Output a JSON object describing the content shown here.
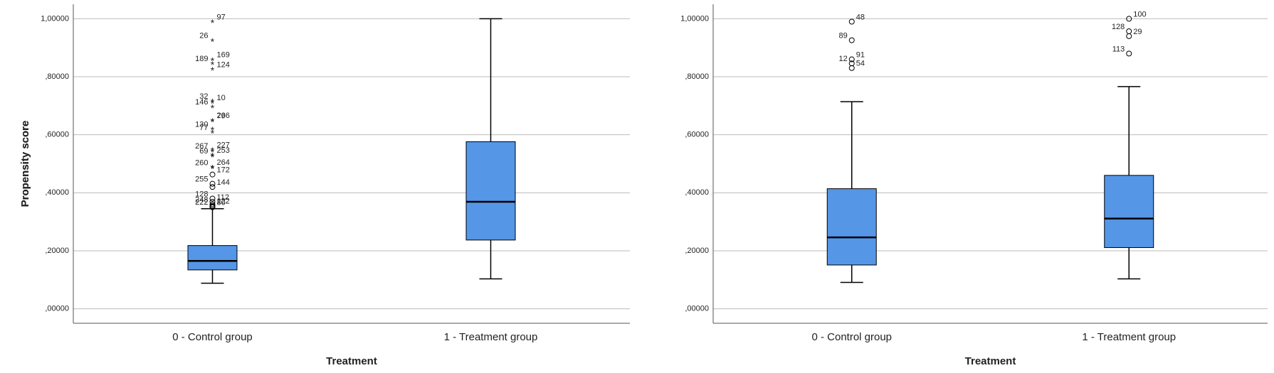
{
  "chart_data": [
    {
      "type": "box",
      "x_label": "Treatment",
      "y_label": "Propensity score",
      "ylim": [
        -0.05,
        1.05
      ],
      "yticks": [
        {
          "value": 0,
          "label": ",00000"
        },
        {
          "value": 0.2,
          "label": ",20000"
        },
        {
          "value": 0.4,
          "label": ",40000"
        },
        {
          "value": 0.6,
          "label": ",60000"
        },
        {
          "value": 0.8,
          "label": ",80000"
        },
        {
          "value": 1.0,
          "label": "1,00000"
        }
      ],
      "grid": true,
      "color": "#5596e6",
      "categories": [
        "0 - Control group",
        "1 - Treatment group"
      ],
      "boxes": [
        {
          "min": 0.088,
          "q1": 0.134,
          "median": 0.165,
          "q3": 0.218,
          "max": 0.345,
          "outliers": [
            {
              "case": "97",
              "value": 0.99
            },
            {
              "case": "26",
              "value": 0.926
            },
            {
              "case": "169",
              "value": 0.86
            },
            {
              "case": "189",
              "value": 0.846
            },
            {
              "case": "124",
              "value": 0.826
            },
            {
              "case": "32",
              "value": 0.717
            },
            {
              "case": "10",
              "value": 0.712
            },
            {
              "case": "146",
              "value": 0.697
            },
            {
              "case": "266",
              "value": 0.65
            },
            {
              "case": "130",
              "value": 0.62
            },
            {
              "case": "79",
              "value": 0.649
            },
            {
              "case": "77",
              "value": 0.609
            },
            {
              "case": "227",
              "value": 0.549
            },
            {
              "case": "267",
              "value": 0.545
            },
            {
              "case": "253",
              "value": 0.531
            },
            {
              "case": "69",
              "value": 0.528
            },
            {
              "case": "264",
              "value": 0.489
            },
            {
              "case": "260",
              "value": 0.487
            },
            {
              "case": "172",
              "value": 0.463
            },
            {
              "case": "255",
              "value": 0.431
            },
            {
              "case": "144",
              "value": 0.42
            },
            {
              "case": "128",
              "value": 0.38
            },
            {
              "case": "112",
              "value": 0.369
            },
            {
              "case": "248",
              "value": 0.36
            },
            {
              "case": "122",
              "value": 0.355
            },
            {
              "case": "222",
              "value": 0.352
            },
            {
              "case": "80",
              "value": 0.35
            }
          ]
        },
        {
          "min": 0.103,
          "q1": 0.237,
          "median": 0.369,
          "q3": 0.576,
          "max": 1.0,
          "outliers": []
        }
      ]
    },
    {
      "type": "box",
      "x_label": "Treatment",
      "y_label": "Propensity score",
      "ylim": [
        -0.05,
        1.05
      ],
      "yticks": [
        {
          "value": 0,
          "label": ",00000"
        },
        {
          "value": 0.2,
          "label": ",20000"
        },
        {
          "value": 0.4,
          "label": ",40000"
        },
        {
          "value": 0.6,
          "label": ",60000"
        },
        {
          "value": 0.8,
          "label": ",80000"
        },
        {
          "value": 1.0,
          "label": "1,00000"
        }
      ],
      "grid": true,
      "color": "#5596e6",
      "categories": [
        "0 - Control group",
        "1 - Treatment group"
      ],
      "boxes": [
        {
          "min": 0.091,
          "q1": 0.151,
          "median": 0.246,
          "q3": 0.414,
          "max": 0.714,
          "outliers": [
            {
              "case": "48",
              "value": 0.99
            },
            {
              "case": "89",
              "value": 0.926
            },
            {
              "case": "91",
              "value": 0.86
            },
            {
              "case": "12",
              "value": 0.846
            },
            {
              "case": "54",
              "value": 0.83
            }
          ]
        },
        {
          "min": 0.103,
          "q1": 0.211,
          "median": 0.311,
          "q3": 0.46,
          "max": 0.766,
          "outliers": [
            {
              "case": "100",
              "value": 1.0
            },
            {
              "case": "128",
              "value": 0.957
            },
            {
              "case": "29",
              "value": 0.94
            },
            {
              "case": "113",
              "value": 0.88
            }
          ]
        }
      ]
    }
  ]
}
